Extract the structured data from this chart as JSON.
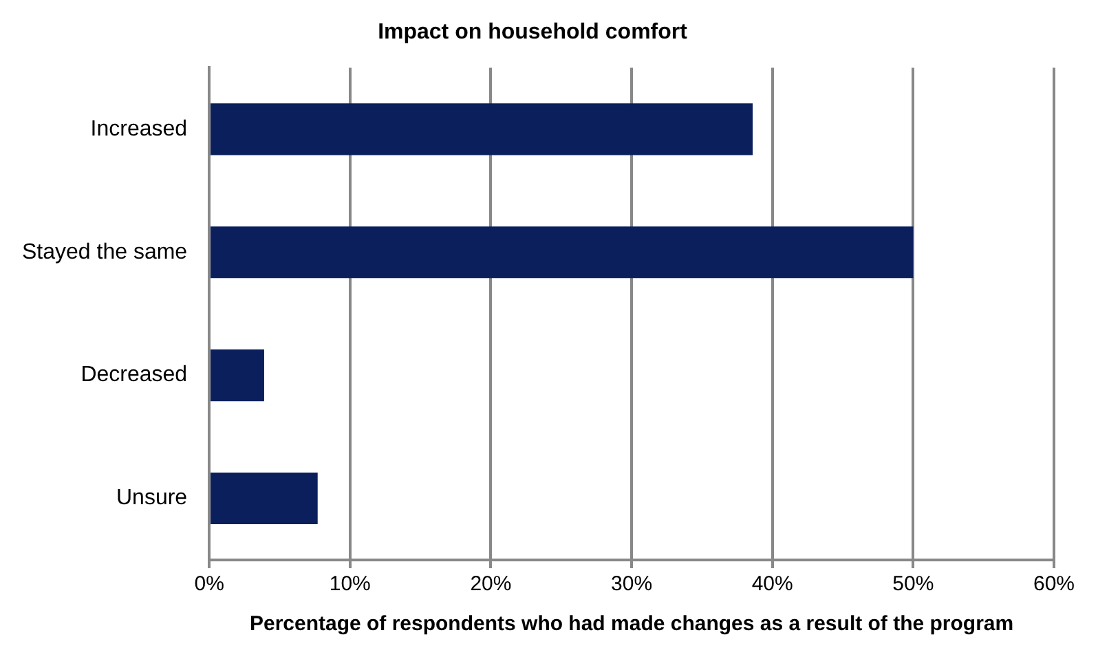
{
  "chart_data": {
    "type": "bar",
    "orientation": "horizontal",
    "title": "Impact on household comfort",
    "xlabel": "Percentage of respondents who had made changes as a result of the program",
    "categories": [
      "Increased",
      "Stayed the same",
      "Decreased",
      "Unsure"
    ],
    "values": [
      38.6,
      50,
      3.9,
      7.7
    ],
    "color": "#0b1f5c",
    "xlim": [
      0,
      60
    ],
    "xticks": [
      {
        "value": 0,
        "label": "0%"
      },
      {
        "value": 10,
        "label": "10%"
      },
      {
        "value": 20,
        "label": "20%"
      },
      {
        "value": 30,
        "label": "30%"
      },
      {
        "value": 40,
        "label": "40%"
      },
      {
        "value": 50,
        "label": "50%"
      },
      {
        "value": 60,
        "label": "60%"
      }
    ],
    "grid": "x",
    "legend": false
  }
}
